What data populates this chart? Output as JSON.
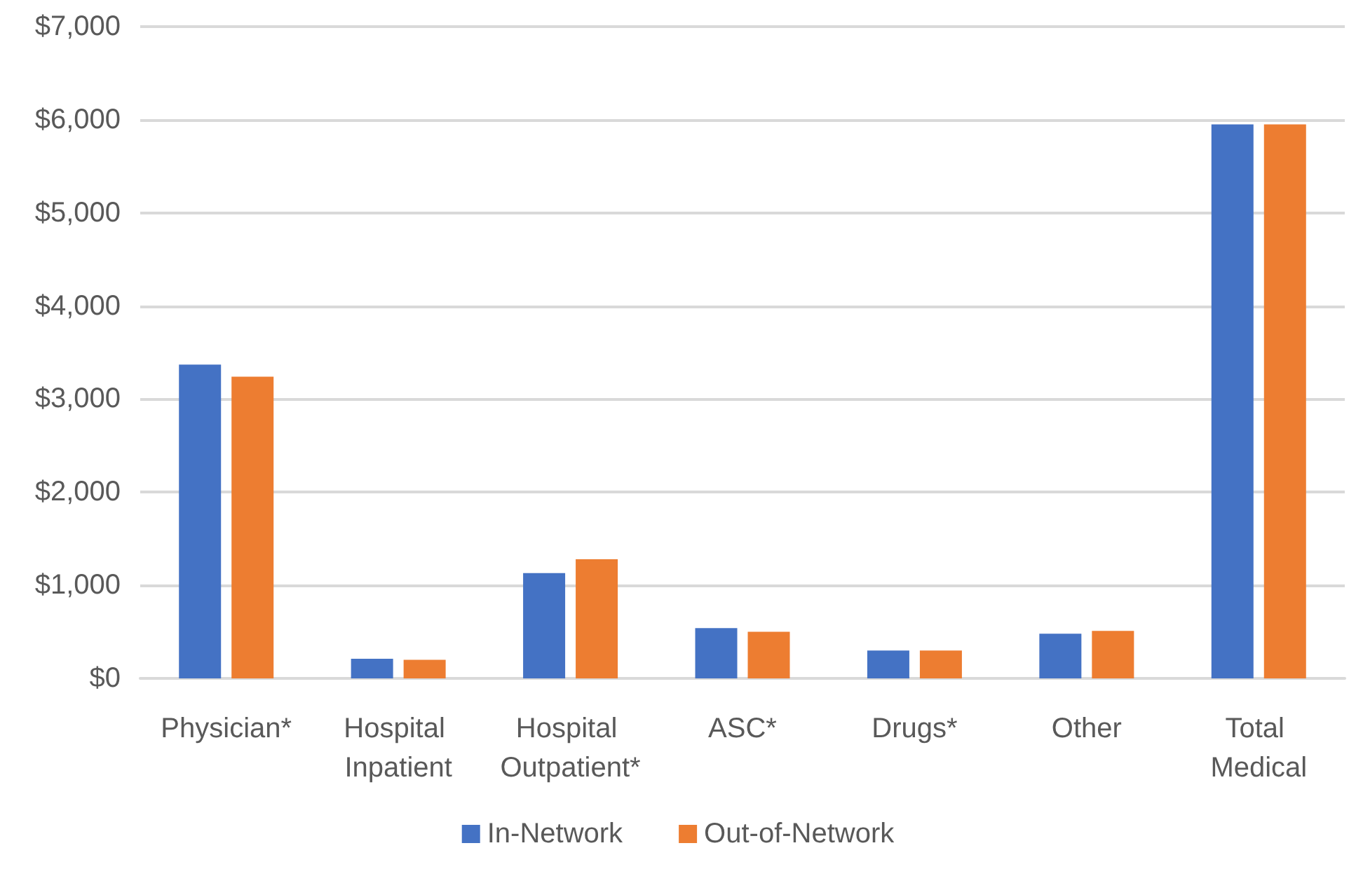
{
  "chart_data": {
    "type": "bar",
    "categories": [
      "Physician*",
      "Hospital Inpatient",
      "Hospital Outpatient*",
      "ASC*",
      "Drugs*",
      "Other",
      "Total Medical"
    ],
    "series": [
      {
        "name": "In-Network",
        "color": "#4472c4",
        "values": [
          3370,
          210,
          1130,
          540,
          300,
          480,
          5950
        ]
      },
      {
        "name": "Out-of-Network",
        "color": "#ed7d31",
        "values": [
          3240,
          200,
          1280,
          500,
          300,
          510,
          5950
        ]
      }
    ],
    "ylim": [
      0,
      7000
    ],
    "yticks": [
      {
        "value": 0,
        "label": "$0"
      },
      {
        "value": 1000,
        "label": "$1,000"
      },
      {
        "value": 2000,
        "label": "$2,000"
      },
      {
        "value": 3000,
        "label": "$3,000"
      },
      {
        "value": 4000,
        "label": "$4,000"
      },
      {
        "value": 5000,
        "label": "$5,000"
      },
      {
        "value": 6000,
        "label": "$6,000"
      },
      {
        "value": 7000,
        "label": "$7,000"
      }
    ],
    "grid": "y",
    "legend": "bottom"
  }
}
